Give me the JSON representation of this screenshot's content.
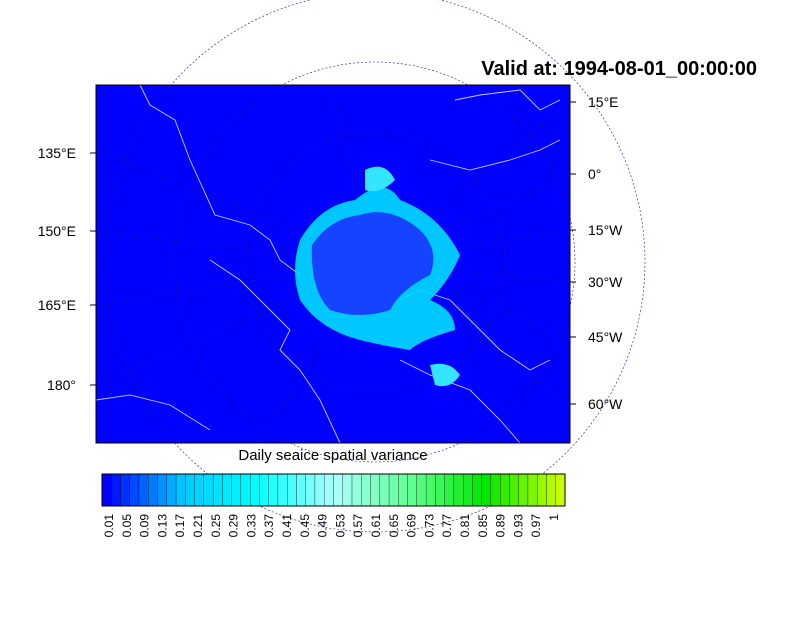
{
  "title": "Valid at: 1994-08-01_00:00:00",
  "left_labels": [
    "135°E",
    "150°E",
    "165°E",
    "180°"
  ],
  "right_labels": [
    "15°E",
    "0°",
    "15°W",
    "30°W",
    "45°W",
    "60°W"
  ],
  "colorbar": {
    "title": "Daily seaice spatial variance",
    "ticks": [
      0.01,
      0.05,
      0.09,
      0.13,
      0.17,
      0.21,
      0.25,
      0.29,
      0.33,
      0.37,
      0.41,
      0.45,
      0.49,
      0.53,
      0.57,
      0.61,
      0.65,
      0.69,
      0.73,
      0.77,
      0.81,
      0.85,
      0.89,
      0.93,
      0.97,
      1
    ]
  }
}
